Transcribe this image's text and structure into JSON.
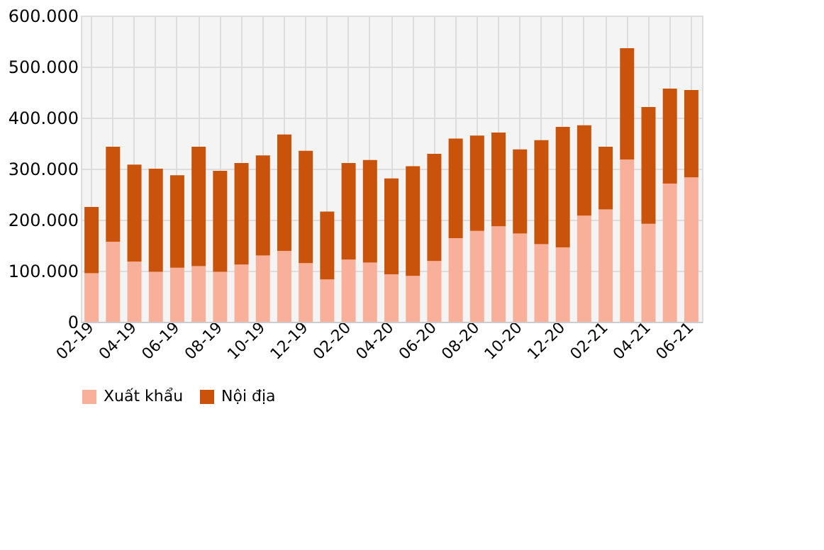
{
  "chart_data": {
    "type": "bar",
    "stacked": true,
    "categories": [
      "02-19",
      null,
      "04-19",
      null,
      "06-19",
      null,
      "08-19",
      null,
      "10-19",
      null,
      "12-19",
      null,
      "02-20",
      null,
      "04-20",
      null,
      "06-20",
      null,
      "08-20",
      null,
      "10-20",
      null,
      "12-20",
      null,
      "02-21",
      null,
      "04-21",
      null,
      "06-21"
    ],
    "series": [
      {
        "name": "Xuất khẩu",
        "color": "#f9b09a",
        "values": [
          95000,
          157000,
          118000,
          98000,
          106000,
          109000,
          98000,
          112000,
          130000,
          139000,
          115000,
          83000,
          122000,
          116000,
          93000,
          90000,
          119000,
          164000,
          178000,
          187000,
          173000,
          152000,
          146000,
          208000,
          220000,
          318000,
          192000,
          271000,
          283000
        ]
      },
      {
        "name": "Nội địa",
        "color": "#c9530a",
        "values": [
          130000,
          186000,
          190000,
          202000,
          181000,
          234000,
          198000,
          199000,
          196000,
          228000,
          220000,
          133000,
          189000,
          201000,
          188000,
          215000,
          210000,
          195000,
          187000,
          184000,
          165000,
          204000,
          236000,
          177000,
          123000,
          218000,
          229000,
          186000,
          171000
        ]
      }
    ],
    "ylim": [
      0,
      600000
    ],
    "yticks": [
      0,
      {
        "value": 100000,
        "label": "100.000"
      },
      {
        "value": 200000,
        "label": "200.000"
      },
      {
        "value": 300000,
        "label": "300.000"
      },
      {
        "value": 400000,
        "label": "400.000"
      },
      {
        "value": 500000,
        "label": "500.000"
      },
      {
        "value": 600000,
        "label": "600.000"
      }
    ],
    "grid": true,
    "legend": "bottom"
  }
}
